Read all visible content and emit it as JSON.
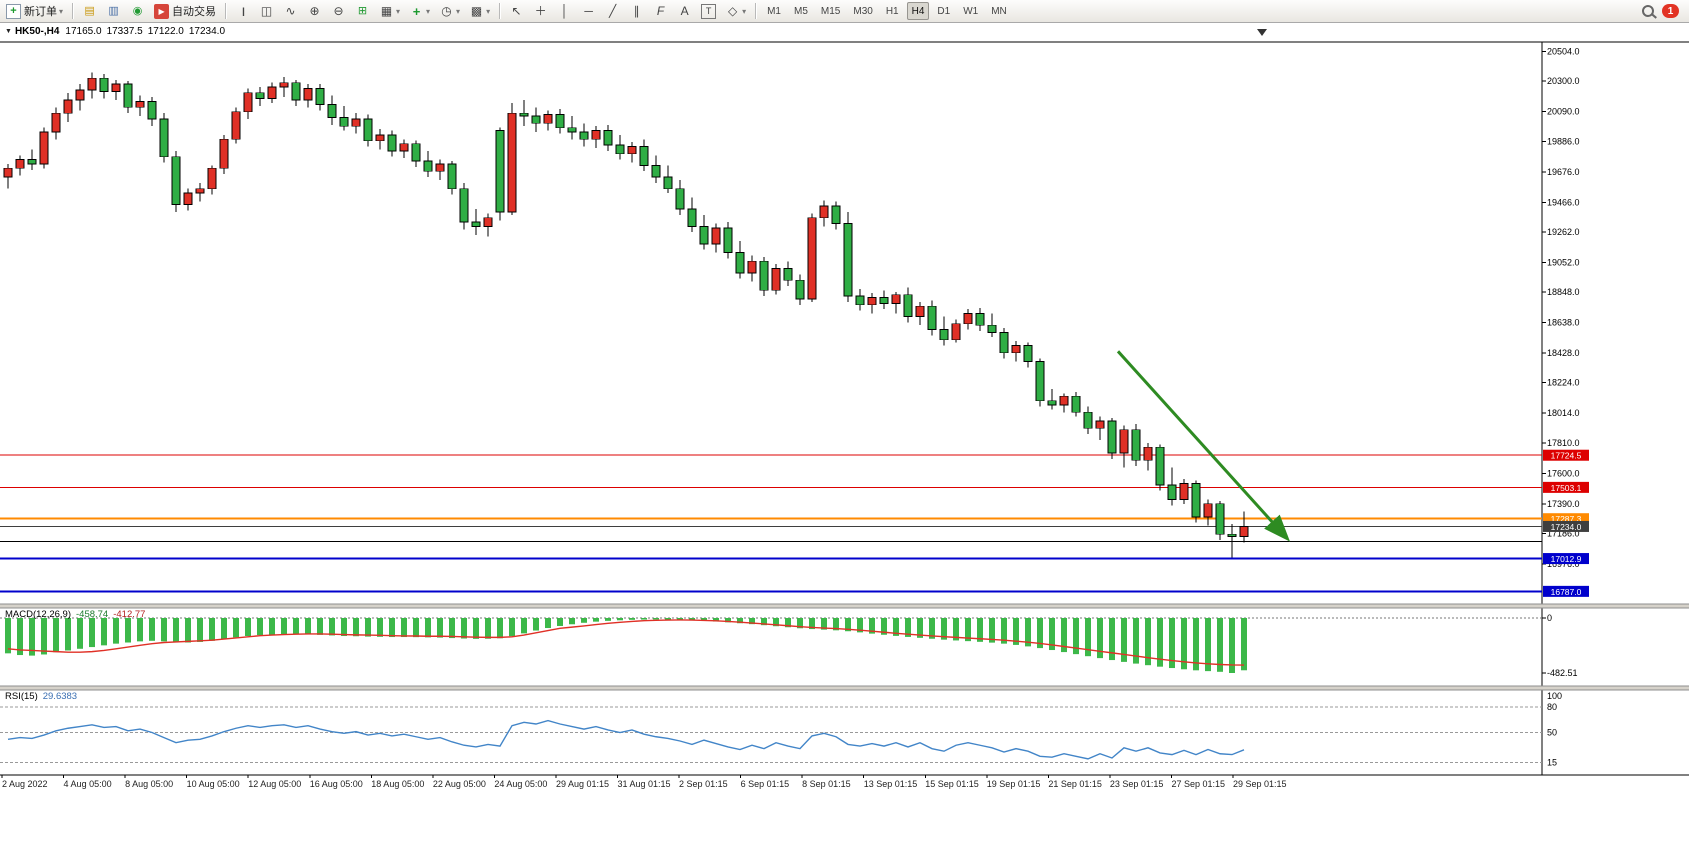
{
  "toolbar": {
    "new_order_label": "新订单",
    "auto_trading_label": "自动交易",
    "timeframes": [
      "M1",
      "M5",
      "M15",
      "M30",
      "H1",
      "H4",
      "D1",
      "W1",
      "MN"
    ],
    "active_timeframe": "H4",
    "notification_count": "1"
  },
  "chart_data": {
    "type": "candlestick",
    "title": {
      "symbol": "HK50-,H4",
      "open": "17165.0",
      "high": "17337.5",
      "low": "17122.0",
      "close": "17234.0"
    },
    "price_axis": {
      "max": 20570,
      "min": 16700,
      "ticks": [
        20504.0,
        20300.0,
        20090.0,
        19886.0,
        19676.0,
        19466.0,
        19262.0,
        19052.0,
        18848.0,
        18638.0,
        18428.0,
        18224.0,
        18014.0,
        17810.0,
        17600.0,
        17390.0,
        17186.0,
        16976.0
      ]
    },
    "colors": {
      "up": "#e03026",
      "down": "#2fae45",
      "wick": "#000000"
    },
    "lines": [
      {
        "price": 17724.5,
        "label": "17724.5",
        "color": "#dd0000",
        "width": 1,
        "badge": true
      },
      {
        "price": 17503.1,
        "label": "17503.1",
        "color": "#dd0000",
        "width": 1,
        "badge": true
      },
      {
        "price": 17287.3,
        "label": "17287.3",
        "color": "#ff8a00",
        "width": 2,
        "badge": true
      },
      {
        "price": 17234.0,
        "label": "17234.0",
        "color": "#3f3f3f",
        "width": 1,
        "badge": true
      },
      {
        "price": 17130.0,
        "label": "",
        "color": "#000000",
        "width": 1,
        "badge": false
      },
      {
        "price": 17012.9,
        "label": "17012.9",
        "color": "#0000cc",
        "width": 2,
        "badge": true
      },
      {
        "price": 16787.0,
        "label": "16787.0",
        "color": "#0000cc",
        "width": 2,
        "badge": true
      }
    ],
    "arrow": {
      "from_index": 92.5,
      "from_price": 18440,
      "to_index": 106.5,
      "to_price": 17160,
      "color": "#2e8b22"
    },
    "candles": [
      [
        19640,
        19730,
        19560,
        19700
      ],
      [
        19700,
        19790,
        19650,
        19760
      ],
      [
        19760,
        19830,
        19690,
        19730
      ],
      [
        19730,
        19980,
        19700,
        19950
      ],
      [
        19950,
        20120,
        19900,
        20080
      ],
      [
        20080,
        20220,
        20020,
        20170
      ],
      [
        20170,
        20280,
        20100,
        20240
      ],
      [
        20240,
        20360,
        20180,
        20320
      ],
      [
        20320,
        20350,
        20180,
        20230
      ],
      [
        20230,
        20310,
        20170,
        20280
      ],
      [
        20280,
        20300,
        20080,
        20120
      ],
      [
        20120,
        20200,
        20060,
        20160
      ],
      [
        20160,
        20190,
        19990,
        20040
      ],
      [
        20040,
        20080,
        19740,
        19780
      ],
      [
        19780,
        19820,
        19400,
        19450
      ],
      [
        19450,
        19560,
        19410,
        19530
      ],
      [
        19530,
        19600,
        19470,
        19560
      ],
      [
        19560,
        19720,
        19520,
        19700
      ],
      [
        19700,
        19930,
        19660,
        19900
      ],
      [
        19900,
        20120,
        19870,
        20090
      ],
      [
        20090,
        20250,
        20040,
        20220
      ],
      [
        20220,
        20260,
        20130,
        20180
      ],
      [
        20180,
        20290,
        20150,
        20260
      ],
      [
        20260,
        20330,
        20190,
        20290
      ],
      [
        20290,
        20310,
        20130,
        20170
      ],
      [
        20170,
        20280,
        20120,
        20250
      ],
      [
        20250,
        20280,
        20100,
        20140
      ],
      [
        20140,
        20200,
        20000,
        20050
      ],
      [
        20050,
        20130,
        19960,
        19990
      ],
      [
        19990,
        20080,
        19940,
        20040
      ],
      [
        20040,
        20070,
        19850,
        19890
      ],
      [
        19890,
        19970,
        19830,
        19930
      ],
      [
        19930,
        19960,
        19780,
        19820
      ],
      [
        19820,
        19900,
        19770,
        19870
      ],
      [
        19870,
        19890,
        19710,
        19750
      ],
      [
        19750,
        19820,
        19640,
        19680
      ],
      [
        19680,
        19760,
        19620,
        19730
      ],
      [
        19730,
        19750,
        19520,
        19560
      ],
      [
        19560,
        19600,
        19280,
        19330
      ],
      [
        19330,
        19420,
        19240,
        19300
      ],
      [
        19300,
        19390,
        19230,
        19360
      ],
      [
        19960,
        19980,
        19340,
        19400
      ],
      [
        19400,
        20150,
        19380,
        20080
      ],
      [
        20080,
        20170,
        19990,
        20060
      ],
      [
        20060,
        20120,
        19950,
        20010
      ],
      [
        20010,
        20100,
        19960,
        20070
      ],
      [
        20070,
        20110,
        19940,
        19980
      ],
      [
        19980,
        20060,
        19900,
        19950
      ],
      [
        19950,
        20010,
        19850,
        19900
      ],
      [
        19900,
        19990,
        19840,
        19960
      ],
      [
        19960,
        20000,
        19820,
        19860
      ],
      [
        19860,
        19930,
        19760,
        19800
      ],
      [
        19800,
        19880,
        19740,
        19850
      ],
      [
        19850,
        19900,
        19680,
        19720
      ],
      [
        19720,
        19790,
        19600,
        19640
      ],
      [
        19640,
        19720,
        19530,
        19560
      ],
      [
        19560,
        19620,
        19380,
        19420
      ],
      [
        19420,
        19500,
        19260,
        19300
      ],
      [
        19300,
        19380,
        19140,
        19180
      ],
      [
        19180,
        19320,
        19120,
        19290
      ],
      [
        19290,
        19330,
        19080,
        19120
      ],
      [
        19120,
        19200,
        18940,
        18980
      ],
      [
        18980,
        19100,
        18920,
        19060
      ],
      [
        19060,
        19090,
        18820,
        18860
      ],
      [
        18860,
        19040,
        18830,
        19010
      ],
      [
        19010,
        19060,
        18890,
        18930
      ],
      [
        18930,
        18970,
        18760,
        18800
      ],
      [
        18800,
        19390,
        18780,
        19360
      ],
      [
        19360,
        19480,
        19300,
        19440
      ],
      [
        19440,
        19470,
        19280,
        19320
      ],
      [
        19320,
        19400,
        18780,
        18820
      ],
      [
        18820,
        18870,
        18720,
        18760
      ],
      [
        18760,
        18840,
        18700,
        18810
      ],
      [
        18810,
        18860,
        18730,
        18770
      ],
      [
        18770,
        18850,
        18700,
        18830
      ],
      [
        18830,
        18880,
        18640,
        18680
      ],
      [
        18680,
        18780,
        18620,
        18750
      ],
      [
        18750,
        18790,
        18550,
        18590
      ],
      [
        18590,
        18680,
        18480,
        18520
      ],
      [
        18520,
        18660,
        18500,
        18630
      ],
      [
        18630,
        18730,
        18590,
        18700
      ],
      [
        18700,
        18740,
        18580,
        18620
      ],
      [
        18620,
        18700,
        18540,
        18570
      ],
      [
        18570,
        18600,
        18390,
        18430
      ],
      [
        18430,
        18510,
        18370,
        18480
      ],
      [
        18480,
        18500,
        18330,
        18370
      ],
      [
        18370,
        18390,
        18060,
        18100
      ],
      [
        18100,
        18180,
        18040,
        18070
      ],
      [
        18070,
        18150,
        18020,
        18130
      ],
      [
        18130,
        18160,
        17990,
        18020
      ],
      [
        18020,
        18060,
        17870,
        17910
      ],
      [
        17910,
        17990,
        17830,
        17960
      ],
      [
        17960,
        17980,
        17700,
        17740
      ],
      [
        17740,
        17930,
        17640,
        17900
      ],
      [
        17900,
        17940,
        17650,
        17690
      ],
      [
        17690,
        17810,
        17620,
        17780
      ],
      [
        17780,
        17800,
        17480,
        17520
      ],
      [
        17520,
        17640,
        17380,
        17420
      ],
      [
        17420,
        17560,
        17390,
        17530
      ],
      [
        17530,
        17550,
        17260,
        17300
      ],
      [
        17300,
        17420,
        17240,
        17390
      ],
      [
        17390,
        17410,
        17140,
        17180
      ],
      [
        17180,
        17250,
        17020,
        17165
      ],
      [
        17165,
        17337.5,
        17122,
        17234
      ]
    ],
    "macd": {
      "name": "MACD(12,26,9)",
      "value_main": "-458.74",
      "value_signal": "-412.77",
      "scale_min": -482.51,
      "axis_ticks": [
        {
          "label": "0",
          "value": 0
        },
        {
          "label": "-482.51",
          "value": -482.51
        }
      ],
      "colors": {
        "histogram": "#3cb849",
        "signal": "#e03026"
      },
      "histogram": [
        -310,
        -325,
        -330,
        -320,
        -300,
        -285,
        -270,
        -255,
        -240,
        -225,
        -215,
        -205,
        -200,
        -205,
        -215,
        -215,
        -210,
        -200,
        -185,
        -170,
        -158,
        -150,
        -145,
        -142,
        -142,
        -144,
        -148,
        -153,
        -158,
        -160,
        -163,
        -165,
        -167,
        -167,
        -168,
        -170,
        -172,
        -176,
        -180,
        -183,
        -182,
        -178,
        -160,
        -135,
        -110,
        -88,
        -70,
        -55,
        -42,
        -32,
        -25,
        -20,
        -16,
        -14,
        -13,
        -14,
        -16,
        -20,
        -25,
        -31,
        -38,
        -46,
        -54,
        -63,
        -72,
        -81,
        -90,
        -97,
        -102,
        -108,
        -116,
        -126,
        -137,
        -147,
        -157,
        -166,
        -174,
        -182,
        -190,
        -197,
        -203,
        -209,
        -216,
        -225,
        -236,
        -249,
        -264,
        -281,
        -299,
        -317,
        -335,
        -352,
        -369,
        -385,
        -400,
        -414,
        -427,
        -439,
        -450,
        -459,
        -466,
        -472,
        -482.51,
        -458.74
      ],
      "signal": [
        -270,
        -280,
        -285,
        -290,
        -295,
        -300,
        -300,
        -295,
        -285,
        -270,
        -255,
        -240,
        -225,
        -215,
        -210,
        -205,
        -200,
        -195,
        -185,
        -175,
        -165,
        -155,
        -150,
        -145,
        -142,
        -140,
        -140,
        -142,
        -145,
        -148,
        -150,
        -152,
        -155,
        -157,
        -158,
        -160,
        -160,
        -162,
        -165,
        -168,
        -170,
        -170,
        -165,
        -150,
        -130,
        -110,
        -90,
        -80,
        -70,
        -58,
        -47,
        -38,
        -30,
        -24,
        -20,
        -18,
        -17,
        -18,
        -21,
        -25,
        -30,
        -37,
        -44,
        -52,
        -60,
        -68,
        -76,
        -83,
        -88,
        -93,
        -99,
        -107,
        -116,
        -125,
        -134,
        -142,
        -150,
        -157,
        -164,
        -170,
        -176,
        -182,
        -188,
        -195,
        -203,
        -212,
        -223,
        -236,
        -250,
        -264,
        -278,
        -292,
        -306,
        -320,
        -334,
        -348,
        -361,
        -373,
        -384,
        -394,
        -402,
        -408,
        -412,
        -412.77
      ]
    },
    "rsi": {
      "name": "RSI(15)",
      "value": "29.6383",
      "color": "#4285c8",
      "levels": [
        80,
        50,
        15
      ],
      "axis_ticks": [
        {
          "label": "100",
          "value": 100
        },
        {
          "label": "80",
          "value": 80
        },
        {
          "label": "50",
          "value": 50
        },
        {
          "label": "15",
          "value": 15
        }
      ],
      "values": [
        42,
        44,
        43,
        47,
        52,
        55,
        57,
        59,
        56,
        57,
        52,
        54,
        50,
        44,
        38,
        41,
        42,
        46,
        51,
        55,
        58,
        56,
        58,
        59,
        56,
        58,
        54,
        51,
        49,
        51,
        47,
        49,
        46,
        48,
        45,
        42,
        44,
        39,
        35,
        33,
        36,
        34,
        58,
        62,
        60,
        64,
        60,
        57,
        54,
        57,
        53,
        50,
        53,
        48,
        45,
        43,
        40,
        36,
        41,
        37,
        33,
        30,
        35,
        31,
        38,
        34,
        31,
        46,
        49,
        45,
        36,
        34,
        37,
        34,
        38,
        33,
        38,
        31,
        28,
        35,
        38,
        35,
        32,
        27,
        31,
        28,
        22,
        21,
        25,
        22,
        19,
        25,
        20,
        32,
        28,
        32,
        26,
        24,
        29,
        24,
        30,
        25,
        24,
        29.6383
      ]
    },
    "time_axis": [
      "2 Aug 2022",
      "4 Aug 05:00",
      "8 Aug 05:00",
      "10 Aug 05:00",
      "12 Aug 05:00",
      "16 Aug 05:00",
      "18 Aug 05:00",
      "22 Aug 05:00",
      "24 Aug 05:00",
      "29 Aug 01:15",
      "31 Aug 01:15",
      "2 Sep 01:15",
      "6 Sep 01:15",
      "8 Sep 01:15",
      "13 Sep 01:15",
      "15 Sep 01:15",
      "19 Sep 01:15",
      "21 Sep 01:15",
      "23 Sep 01:15",
      "27 Sep 01:15",
      "29 Sep 01:15"
    ]
  }
}
